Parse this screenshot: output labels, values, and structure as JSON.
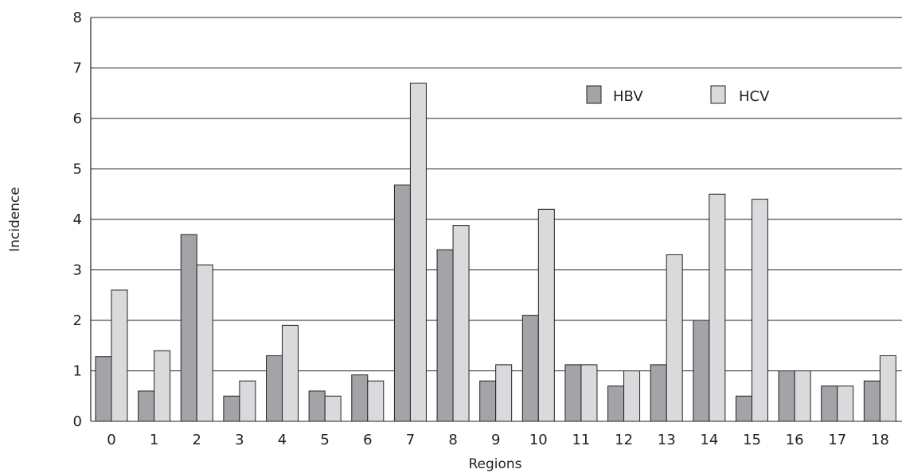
{
  "chart_data": {
    "type": "bar",
    "title": "",
    "xlabel": "Regions",
    "ylabel": "Incidence",
    "ylim": [
      0,
      8
    ],
    "yticks": [
      0,
      1,
      2,
      3,
      4,
      5,
      6,
      7,
      8
    ],
    "grid": true,
    "legend_position": "top-right",
    "categories": [
      "0",
      "1",
      "2",
      "3",
      "4",
      "5",
      "6",
      "7",
      "8",
      "9",
      "10",
      "11",
      "12",
      "13",
      "14",
      "15",
      "16",
      "17",
      "18"
    ],
    "series": [
      {
        "name": "HBV",
        "color": "#a4a4a8",
        "values": [
          1.28,
          0.6,
          3.7,
          0.5,
          1.3,
          0.6,
          0.92,
          4.68,
          3.4,
          0.8,
          2.1,
          1.12,
          0.7,
          1.12,
          2.0,
          0.5,
          1.0,
          0.7,
          0.8
        ]
      },
      {
        "name": "HCV",
        "color": "#dadadc",
        "values": [
          2.6,
          1.4,
          3.1,
          0.8,
          1.9,
          0.5,
          0.8,
          6.7,
          3.88,
          1.12,
          4.2,
          1.12,
          1.0,
          3.3,
          4.5,
          4.4,
          1.0,
          0.7,
          1.3
        ]
      }
    ]
  }
}
